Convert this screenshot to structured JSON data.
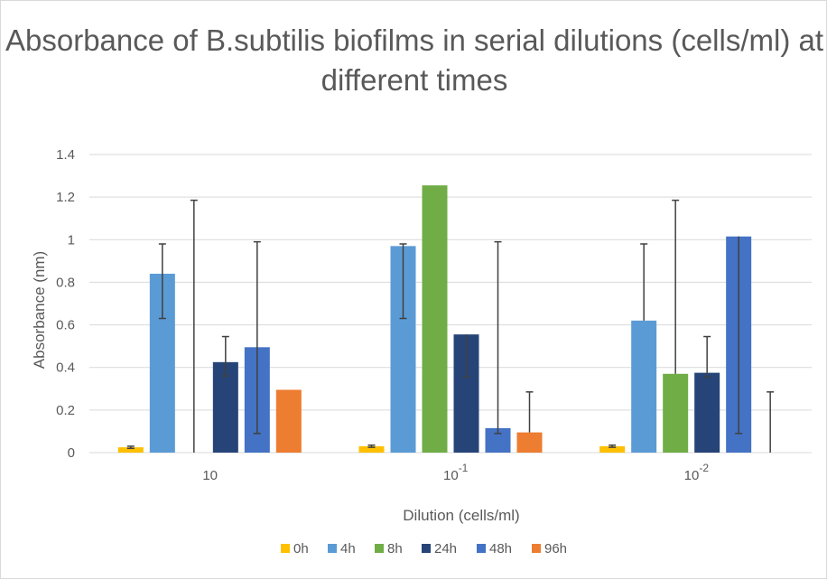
{
  "chart_data": {
    "type": "bar",
    "title": "Absorbance of B.subtilis biofilms in serial dilutions (cells/ml) at different times",
    "xlabel": "Dilution (cells/ml)",
    "ylabel": "Absorbance (nm)",
    "categories": [
      {
        "base": "10",
        "exp": ""
      },
      {
        "base": "10",
        "exp": "-1"
      },
      {
        "base": "10",
        "exp": "-2"
      }
    ],
    "ylim": [
      0,
      1.4
    ],
    "yticks": [
      "0",
      "0.2",
      "0.4",
      "0.6",
      "0.8",
      "1",
      "1.2",
      "1.4"
    ],
    "grid": true,
    "legend_position": "bottom",
    "series": [
      {
        "name": "0h",
        "color": "#ffc000",
        "values": [
          0.025,
          0.03,
          0.03
        ],
        "err_low": [
          0.005,
          0.005,
          0.005
        ],
        "err_high": [
          0.005,
          0.005,
          0.005
        ]
      },
      {
        "name": "4h",
        "color": "#5b9bd5",
        "values": [
          0.84,
          0.97,
          0.62
        ],
        "err_low": [
          0.21,
          0.34,
          0.0
        ],
        "err_high": [
          0.14,
          0.01,
          0.36
        ]
      },
      {
        "name": "8h",
        "color": "#70ad47",
        "values": [
          0.0,
          1.255,
          0.37
        ],
        "err_low": [
          0.0,
          0.0,
          0.0
        ],
        "err_high": [
          1.185,
          0.0,
          0.815
        ]
      },
      {
        "name": "24h",
        "color": "#264478",
        "values": [
          0.425,
          0.555,
          0.375
        ],
        "err_low": [
          0.065,
          0.2,
          0.02
        ],
        "err_high": [
          0.12,
          0.0,
          0.17
        ]
      },
      {
        "name": "48h",
        "color": "#4472c4",
        "values": [
          0.495,
          0.115,
          1.015
        ],
        "err_low": [
          0.405,
          0.025,
          0.925
        ],
        "err_high": [
          0.495,
          0.875,
          0.0
        ]
      },
      {
        "name": "96h",
        "color": "#ed7d31",
        "values": [
          0.295,
          0.095,
          0.0
        ],
        "err_low": [
          0.0,
          0.0,
          0.0
        ],
        "err_high": [
          0.0,
          0.19,
          0.285
        ]
      }
    ]
  }
}
